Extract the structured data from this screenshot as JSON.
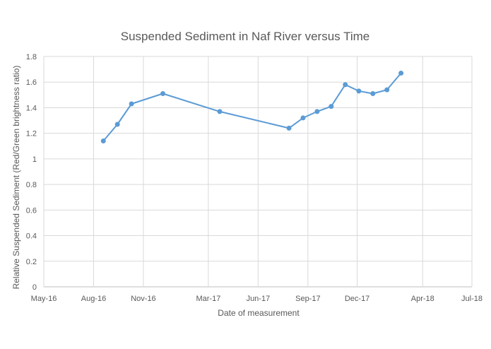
{
  "chart_data": {
    "type": "line",
    "title": "Suspended Sediment in Naf River versus Time",
    "xlabel": "Date of measurement",
    "ylabel": "Relative Suspended Sediment (Red/Green brightness ratio)",
    "x_axis": {
      "type": "date",
      "range": [
        "2016-05-01",
        "2018-07-01"
      ],
      "ticks": [
        {
          "date": "2016-05-01",
          "label": "May-16"
        },
        {
          "date": "2016-08-01",
          "label": "Aug-16"
        },
        {
          "date": "2016-11-01",
          "label": "Nov-16"
        },
        {
          "date": "2017-03-01",
          "label": "Mar-17"
        },
        {
          "date": "2017-06-01",
          "label": "Jun-17"
        },
        {
          "date": "2017-09-01",
          "label": "Sep-17"
        },
        {
          "date": "2017-12-01",
          "label": "Dec-17"
        },
        {
          "date": "2018-04-01",
          "label": "Apr-18"
        },
        {
          "date": "2018-07-01",
          "label": "Jul-18"
        }
      ]
    },
    "y_axis": {
      "range": [
        0,
        1.8
      ],
      "ticks": [
        0,
        0.2,
        0.4,
        0.6,
        0.8,
        1,
        1.2,
        1.4,
        1.6,
        1.8
      ]
    },
    "grid": "horizontal",
    "legend": "none",
    "series": [
      {
        "color": "#5b9bd5",
        "points": [
          {
            "x": "2016-08-19",
            "y": 1.14
          },
          {
            "x": "2016-09-14",
            "y": 1.27
          },
          {
            "x": "2016-10-10",
            "y": 1.43
          },
          {
            "x": "2016-12-07",
            "y": 1.51
          },
          {
            "x": "2017-03-22",
            "y": 1.37
          },
          {
            "x": "2017-07-28",
            "y": 1.24
          },
          {
            "x": "2017-08-23",
            "y": 1.32
          },
          {
            "x": "2017-09-18",
            "y": 1.37
          },
          {
            "x": "2017-10-14",
            "y": 1.41
          },
          {
            "x": "2017-11-09",
            "y": 1.58
          },
          {
            "x": "2017-12-04",
            "y": 1.53
          },
          {
            "x": "2017-12-30",
            "y": 1.51
          },
          {
            "x": "2018-01-25",
            "y": 1.54
          },
          {
            "x": "2018-02-20",
            "y": 1.67
          }
        ]
      }
    ]
  }
}
